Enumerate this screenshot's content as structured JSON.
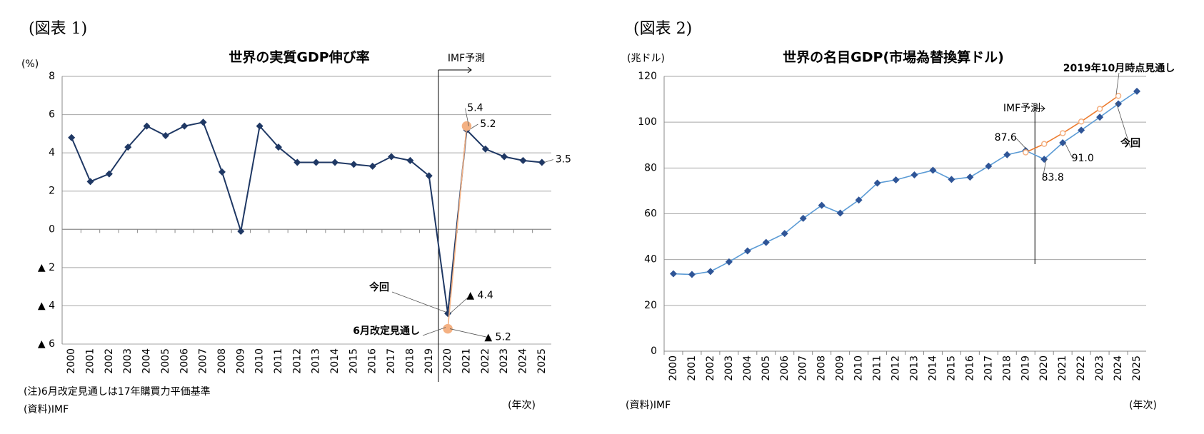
{
  "chart_data": [
    {
      "type": "line",
      "figure_label": "(図表 1)",
      "title": "世界の実質GDP伸び率",
      "y_unit": "(%)",
      "x_unit": "(年次)",
      "note": "(注)6月改定見通しは17年購買力平価基準",
      "source": "(資料)IMF",
      "forecast_label": "IMF予測",
      "categories": [
        "2000",
        "2001",
        "2002",
        "2003",
        "2004",
        "2005",
        "2006",
        "2007",
        "2008",
        "2009",
        "2010",
        "2011",
        "2012",
        "2013",
        "2014",
        "2015",
        "2016",
        "2017",
        "2018",
        "2019",
        "2020",
        "2021",
        "2022",
        "2023",
        "2024",
        "2025"
      ],
      "series": [
        {
          "name": "今回",
          "color": "#1f3864",
          "marker_color": "#1f3864",
          "marker": "diamond",
          "values": [
            4.8,
            2.5,
            2.9,
            4.3,
            5.4,
            4.9,
            5.4,
            5.6,
            3.0,
            -0.1,
            5.4,
            4.3,
            3.5,
            3.5,
            3.5,
            3.4,
            3.3,
            3.8,
            3.6,
            2.8,
            -4.4,
            5.2,
            4.2,
            3.8,
            3.6,
            3.5
          ],
          "value_labels": [
            null,
            null,
            null,
            null,
            null,
            null,
            null,
            null,
            null,
            null,
            null,
            null,
            null,
            null,
            null,
            null,
            null,
            null,
            null,
            null,
            "▲ 4.4",
            "5.2",
            null,
            null,
            null,
            "3.5"
          ]
        },
        {
          "name": "6月改定見通し",
          "color": "#f4b183",
          "marker_color": "#f4b183",
          "marker": "circle",
          "values": [
            null,
            null,
            null,
            null,
            null,
            null,
            null,
            null,
            null,
            null,
            null,
            null,
            null,
            null,
            null,
            null,
            null,
            null,
            null,
            null,
            -5.2,
            5.4,
            null,
            null,
            null,
            null
          ],
          "value_labels": [
            null,
            null,
            null,
            null,
            null,
            null,
            null,
            null,
            null,
            null,
            null,
            null,
            null,
            null,
            null,
            null,
            null,
            null,
            null,
            null,
            "▲ 5.2",
            "5.4",
            null,
            null,
            null,
            null
          ]
        }
      ],
      "ylim": [
        -6,
        8
      ],
      "yticks": [
        {
          "value": -6,
          "label": "▲ 6"
        },
        {
          "value": -4,
          "label": "▲ 4"
        },
        {
          "value": -2,
          "label": "▲ 2"
        },
        0,
        2,
        4,
        6,
        8
      ],
      "grid": true
    },
    {
      "type": "line",
      "figure_label": "(図表 2)",
      "title": "世界の名目GDP(市場為替換算ドル)",
      "y_unit": "(兆ドル)",
      "x_unit": "(年次)",
      "source": "(資料)IMF",
      "forecast_label": "IMF予測",
      "categories": [
        "2000",
        "2001",
        "2002",
        "2003",
        "2004",
        "2005",
        "2006",
        "2007",
        "2008",
        "2009",
        "2010",
        "2011",
        "2012",
        "2013",
        "2014",
        "2015",
        "2016",
        "2017",
        "2018",
        "2019",
        "2020",
        "2021",
        "2022",
        "2023",
        "2024",
        "2025"
      ],
      "series": [
        {
          "name": "今回",
          "color": "#5b9bd5",
          "marker_color": "#2f5597",
          "marker": "diamond",
          "values": [
            33.8,
            33.5,
            34.8,
            39.0,
            43.8,
            47.5,
            51.4,
            58.0,
            63.7,
            60.3,
            66.0,
            73.4,
            74.8,
            77.0,
            79.0,
            75.0,
            76.0,
            80.8,
            85.8,
            87.6,
            83.8,
            91.0,
            96.5,
            102.2,
            108.0,
            113.5
          ],
          "value_labels": [
            null,
            null,
            null,
            null,
            null,
            null,
            null,
            null,
            null,
            null,
            null,
            null,
            null,
            null,
            null,
            null,
            null,
            null,
            null,
            "87.6",
            "83.8",
            "91.0",
            null,
            null,
            null,
            null
          ]
        },
        {
          "name": "2019年10月時点見通し",
          "color": "#ed7d31",
          "marker_color": "#f4b183",
          "marker": "circle",
          "values": [
            null,
            null,
            null,
            null,
            null,
            null,
            null,
            null,
            null,
            null,
            null,
            null,
            null,
            null,
            null,
            null,
            null,
            null,
            null,
            86.8,
            90.5,
            95.2,
            100.3,
            105.8,
            111.5,
            null
          ]
        }
      ],
      "ylim": [
        0,
        120
      ],
      "yticks": [
        0,
        20,
        40,
        60,
        80,
        100,
        120
      ],
      "grid": true
    }
  ]
}
